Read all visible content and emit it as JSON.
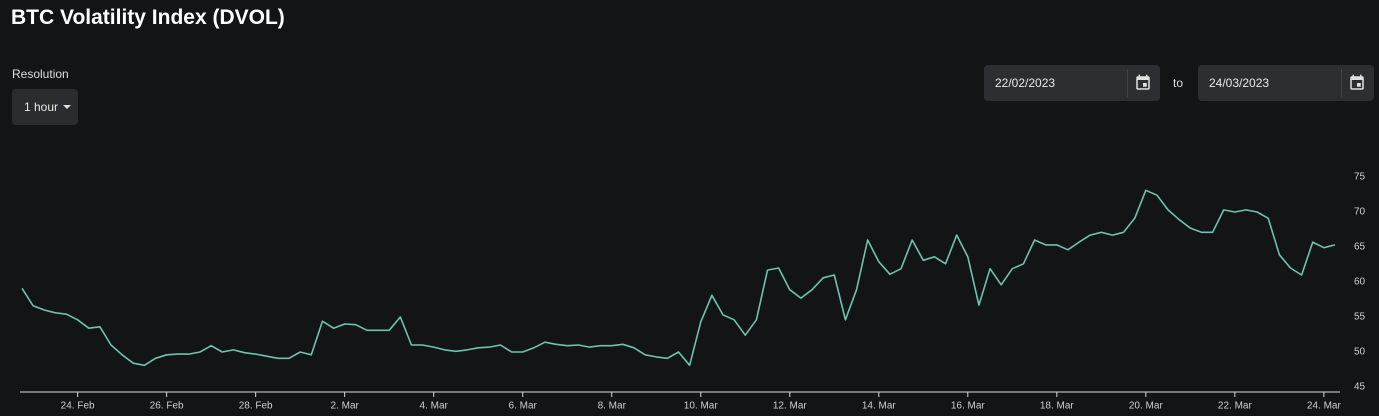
{
  "ui": {
    "resolution_label": "Resolution",
    "resolution": "1 hour",
    "date_from": "22/02/2023",
    "to": "to",
    "date_to": "24/03/2023"
  },
  "chart_data": {
    "type": "line",
    "title": "BTC Volatility Index (DVOL)",
    "color": "#6cc3b0",
    "x": [
      "2023-02-22T18:00",
      "2023-02-23T00:00",
      "2023-02-23T06:00",
      "2023-02-23T12:00",
      "2023-02-23T18:00",
      "2023-02-24T00:00",
      "2023-02-24T06:00",
      "2023-02-24T12:00",
      "2023-02-24T18:00",
      "2023-02-25T00:00",
      "2023-02-25T06:00",
      "2023-02-25T12:00",
      "2023-02-25T18:00",
      "2023-02-26T00:00",
      "2023-02-26T06:00",
      "2023-02-26T12:00",
      "2023-02-26T18:00",
      "2023-02-27T00:00",
      "2023-02-27T06:00",
      "2023-02-27T12:00",
      "2023-02-27T18:00",
      "2023-02-28T00:00",
      "2023-02-28T06:00",
      "2023-02-28T12:00",
      "2023-02-28T18:00",
      "2023-03-01T00:00",
      "2023-03-01T06:00",
      "2023-03-01T12:00",
      "2023-03-01T18:00",
      "2023-03-02T00:00",
      "2023-03-02T06:00",
      "2023-03-02T12:00",
      "2023-03-02T18:00",
      "2023-03-03T00:00",
      "2023-03-03T06:00",
      "2023-03-03T12:00",
      "2023-03-03T18:00",
      "2023-03-04T00:00",
      "2023-03-04T06:00",
      "2023-03-04T12:00",
      "2023-03-04T18:00",
      "2023-03-05T00:00",
      "2023-03-05T06:00",
      "2023-03-05T12:00",
      "2023-03-05T18:00",
      "2023-03-06T00:00",
      "2023-03-06T06:00",
      "2023-03-06T12:00",
      "2023-03-06T18:00",
      "2023-03-07T00:00",
      "2023-03-07T06:00",
      "2023-03-07T12:00",
      "2023-03-07T18:00",
      "2023-03-08T00:00",
      "2023-03-08T06:00",
      "2023-03-08T12:00",
      "2023-03-08T18:00",
      "2023-03-09T00:00",
      "2023-03-09T06:00",
      "2023-03-09T12:00",
      "2023-03-09T18:00",
      "2023-03-10T00:00",
      "2023-03-10T06:00",
      "2023-03-10T12:00",
      "2023-03-10T18:00",
      "2023-03-11T00:00",
      "2023-03-11T06:00",
      "2023-03-11T12:00",
      "2023-03-11T18:00",
      "2023-03-12T00:00",
      "2023-03-12T06:00",
      "2023-03-12T12:00",
      "2023-03-12T18:00",
      "2023-03-13T00:00",
      "2023-03-13T06:00",
      "2023-03-13T12:00",
      "2023-03-13T18:00",
      "2023-03-14T00:00",
      "2023-03-14T06:00",
      "2023-03-14T12:00",
      "2023-03-14T18:00",
      "2023-03-15T00:00",
      "2023-03-15T06:00",
      "2023-03-15T12:00",
      "2023-03-15T18:00",
      "2023-03-16T00:00",
      "2023-03-16T06:00",
      "2023-03-16T12:00",
      "2023-03-16T18:00",
      "2023-03-17T00:00",
      "2023-03-17T06:00",
      "2023-03-17T12:00",
      "2023-03-17T18:00",
      "2023-03-18T00:00",
      "2023-03-18T06:00",
      "2023-03-18T12:00",
      "2023-03-18T18:00",
      "2023-03-19T00:00",
      "2023-03-19T06:00",
      "2023-03-19T12:00",
      "2023-03-19T18:00",
      "2023-03-20T00:00",
      "2023-03-20T06:00",
      "2023-03-20T12:00",
      "2023-03-20T18:00",
      "2023-03-21T00:00",
      "2023-03-21T06:00",
      "2023-03-21T12:00",
      "2023-03-21T18:00",
      "2023-03-22T00:00",
      "2023-03-22T06:00",
      "2023-03-22T12:00",
      "2023-03-22T18:00",
      "2023-03-23T00:00",
      "2023-03-23T06:00",
      "2023-03-23T12:00",
      "2023-03-23T18:00",
      "2023-03-24T00:00",
      "2023-03-24T06:00"
    ],
    "values": [
      59.1,
      56.6,
      56,
      55.6,
      55.4,
      54.6,
      53.4,
      53.6,
      51,
      49.6,
      48.4,
      48.1,
      49.1,
      49.6,
      49.7,
      49.7,
      50,
      50.9,
      50,
      50.3,
      49.9,
      49.7,
      49.4,
      49.1,
      49.1,
      50,
      49.6,
      54.4,
      53.4,
      54,
      53.9,
      53.1,
      53.1,
      53.1,
      55,
      51,
      51,
      50.7,
      50.3,
      50.1,
      50.3,
      50.6,
      50.7,
      51,
      50,
      50,
      50.6,
      51.4,
      51.1,
      50.9,
      51,
      50.7,
      50.9,
      50.9,
      51.1,
      50.6,
      49.6,
      49.3,
      49.1,
      50,
      48.1,
      54.3,
      58.1,
      55.3,
      54.6,
      52.4,
      54.6,
      61.7,
      62,
      58.9,
      57.7,
      58.9,
      60.6,
      61,
      54.6,
      58.9,
      66,
      62.9,
      61.1,
      61.9,
      66,
      63.1,
      63.6,
      62.6,
      66.7,
      63.6,
      56.7,
      61.9,
      59.6,
      61.9,
      62.6,
      66,
      65.3,
      65.3,
      64.6,
      65.7,
      66.7,
      67.1,
      66.7,
      67.1,
      69.1,
      73.1,
      72.4,
      70.3,
      68.9,
      67.7,
      67.1,
      67.1,
      70.3,
      70,
      70.3,
      70,
      69.1,
      63.9,
      62,
      61,
      65.7,
      64.9,
      65.3
    ],
    "xlim": [
      "2023-02-22T18:00",
      "2023-03-24T06:00"
    ],
    "xticks": [
      {
        "value": "2023-02-24T00:00",
        "label": "24. Feb"
      },
      {
        "value": "2023-02-26T00:00",
        "label": "26. Feb"
      },
      {
        "value": "2023-02-28T00:00",
        "label": "28. Feb"
      },
      {
        "value": "2023-03-02T00:00",
        "label": "2. Mar"
      },
      {
        "value": "2023-03-04T00:00",
        "label": "4. Mar"
      },
      {
        "value": "2023-03-06T00:00",
        "label": "6. Mar"
      },
      {
        "value": "2023-03-08T00:00",
        "label": "8. Mar"
      },
      {
        "value": "2023-03-10T00:00",
        "label": "10. Mar"
      },
      {
        "value": "2023-03-12T00:00",
        "label": "12. Mar"
      },
      {
        "value": "2023-03-14T00:00",
        "label": "14. Mar"
      },
      {
        "value": "2023-03-16T00:00",
        "label": "16. Mar"
      },
      {
        "value": "2023-03-18T00:00",
        "label": "18. Mar"
      },
      {
        "value": "2023-03-20T00:00",
        "label": "20. Mar"
      },
      {
        "value": "2023-03-22T00:00",
        "label": "22. Mar"
      },
      {
        "value": "2023-03-24T00:00",
        "label": "24. Mar"
      }
    ],
    "ylim": [
      45,
      75
    ],
    "yticks": [
      45,
      50,
      55,
      60,
      65,
      70,
      75
    ],
    "grid": false
  }
}
